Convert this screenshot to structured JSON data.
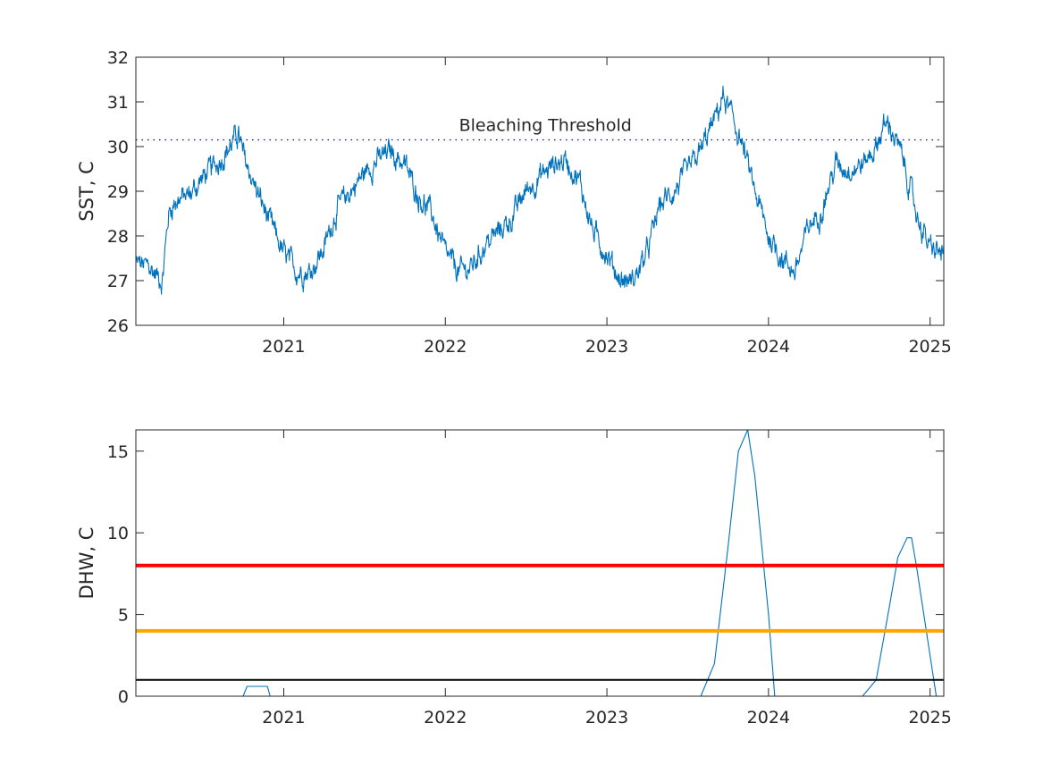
{
  "chart_data": [
    {
      "type": "line",
      "title": "",
      "xlabel": "",
      "ylabel": "SST, C",
      "xlim": [
        "2020-02-01",
        "2025-02-01"
      ],
      "ylim": [
        26,
        32
      ],
      "yticks": [
        26,
        27,
        28,
        29,
        30,
        31,
        32
      ],
      "xticks": [
        "2021",
        "2022",
        "2023",
        "2024",
        "2025"
      ],
      "grid": false,
      "series": [
        {
          "color": "#0072BD",
          "x": [
            "2020-02-01",
            "2020-03-01",
            "2020-04-01",
            "2020-04-15",
            "2020-05-01",
            "2020-06-01",
            "2020-07-01",
            "2020-08-01",
            "2020-09-01",
            "2020-09-20",
            "2020-10-01",
            "2020-11-01",
            "2020-12-01",
            "2021-01-01",
            "2021-02-01",
            "2021-03-01",
            "2021-04-01",
            "2021-05-01",
            "2021-06-01",
            "2021-07-01",
            "2021-08-01",
            "2021-09-01",
            "2021-10-01",
            "2021-11-01",
            "2021-12-01",
            "2022-01-01",
            "2022-02-01",
            "2022-03-01",
            "2022-04-01",
            "2022-05-01",
            "2022-06-01",
            "2022-07-01",
            "2022-08-01",
            "2022-09-01",
            "2022-10-01",
            "2022-11-01",
            "2022-12-01",
            "2023-01-01",
            "2023-02-01",
            "2023-03-01",
            "2023-04-01",
            "2023-05-01",
            "2023-06-01",
            "2023-07-01",
            "2023-08-01",
            "2023-09-01",
            "2023-09-20",
            "2023-10-01",
            "2023-11-01",
            "2023-12-01",
            "2024-01-01",
            "2024-02-01",
            "2024-03-01",
            "2024-04-01",
            "2024-05-01",
            "2024-06-01",
            "2024-07-01",
            "2024-08-01",
            "2024-09-01",
            "2024-09-15",
            "2024-10-01",
            "2024-11-01",
            "2024-12-01",
            "2025-01-01",
            "2025-02-01"
          ],
          "y": [
            27.4,
            27.3,
            27.0,
            28.5,
            28.8,
            28.9,
            29.3,
            29.6,
            30.0,
            30.3,
            29.8,
            29.0,
            28.3,
            27.6,
            27.2,
            27.2,
            27.7,
            28.6,
            29.0,
            29.4,
            29.7,
            29.9,
            29.6,
            28.9,
            28.5,
            27.6,
            27.2,
            27.3,
            27.8,
            28.1,
            28.4,
            29.0,
            29.3,
            29.6,
            29.7,
            29.2,
            28.1,
            27.6,
            27.0,
            27.0,
            27.6,
            28.7,
            29.0,
            29.4,
            29.9,
            30.6,
            31.1,
            30.9,
            30.1,
            29.0,
            28.0,
            27.5,
            27.2,
            28.2,
            28.6,
            29.6,
            29.5,
            29.6,
            30.0,
            30.4,
            30.5,
            29.7,
            28.5,
            27.7,
            27.6
          ]
        },
        {
          "name": "Bleaching Threshold",
          "style": "dotted",
          "color": "#00008B",
          "x": [
            "2020-02-01",
            "2025-02-01"
          ],
          "y": [
            30.15,
            30.15
          ]
        }
      ],
      "annotations": [
        {
          "text": "Bleaching Threshold",
          "x": "2022-08-15",
          "y": 30.35
        }
      ]
    },
    {
      "type": "line",
      "title": "",
      "xlabel": "",
      "ylabel": "DHW, C",
      "xlim": [
        "2020-02-01",
        "2025-02-01"
      ],
      "ylim": [
        0,
        16.3
      ],
      "yticks": [
        0,
        5,
        10,
        15
      ],
      "xticks": [
        "2021",
        "2022",
        "2023",
        "2024",
        "2025"
      ],
      "grid": false,
      "series": [
        {
          "color": "#0072BD",
          "x": [
            "2020-02-01",
            "2020-10-01",
            "2020-10-10",
            "2020-11-25",
            "2020-12-01",
            "2023-08-01",
            "2023-09-01",
            "2023-10-01",
            "2023-10-25",
            "2023-11-15",
            "2023-12-01",
            "2024-01-01",
            "2024-01-15",
            "2024-02-01",
            "2024-08-01",
            "2024-09-01",
            "2024-10-01",
            "2024-10-20",
            "2024-11-10",
            "2024-11-20",
            "2024-12-01",
            "2025-01-01",
            "2025-01-15",
            "2025-02-01"
          ],
          "y": [
            0,
            0,
            0.6,
            0.6,
            0,
            0,
            2.0,
            9.0,
            15.0,
            16.3,
            13.5,
            5.0,
            0,
            0,
            0,
            1.0,
            5.5,
            8.5,
            9.7,
            9.7,
            8.0,
            2.5,
            0,
            0
          ]
        },
        {
          "color": "#FF0000",
          "x": [
            "2020-02-01",
            "2025-02-01"
          ],
          "y": [
            8,
            8
          ]
        },
        {
          "color": "#FFA500",
          "x": [
            "2020-02-01",
            "2025-02-01"
          ],
          "y": [
            4,
            4
          ]
        },
        {
          "color": "#000000",
          "x": [
            "2020-02-01",
            "2025-02-01"
          ],
          "y": [
            1,
            1
          ]
        }
      ]
    }
  ]
}
